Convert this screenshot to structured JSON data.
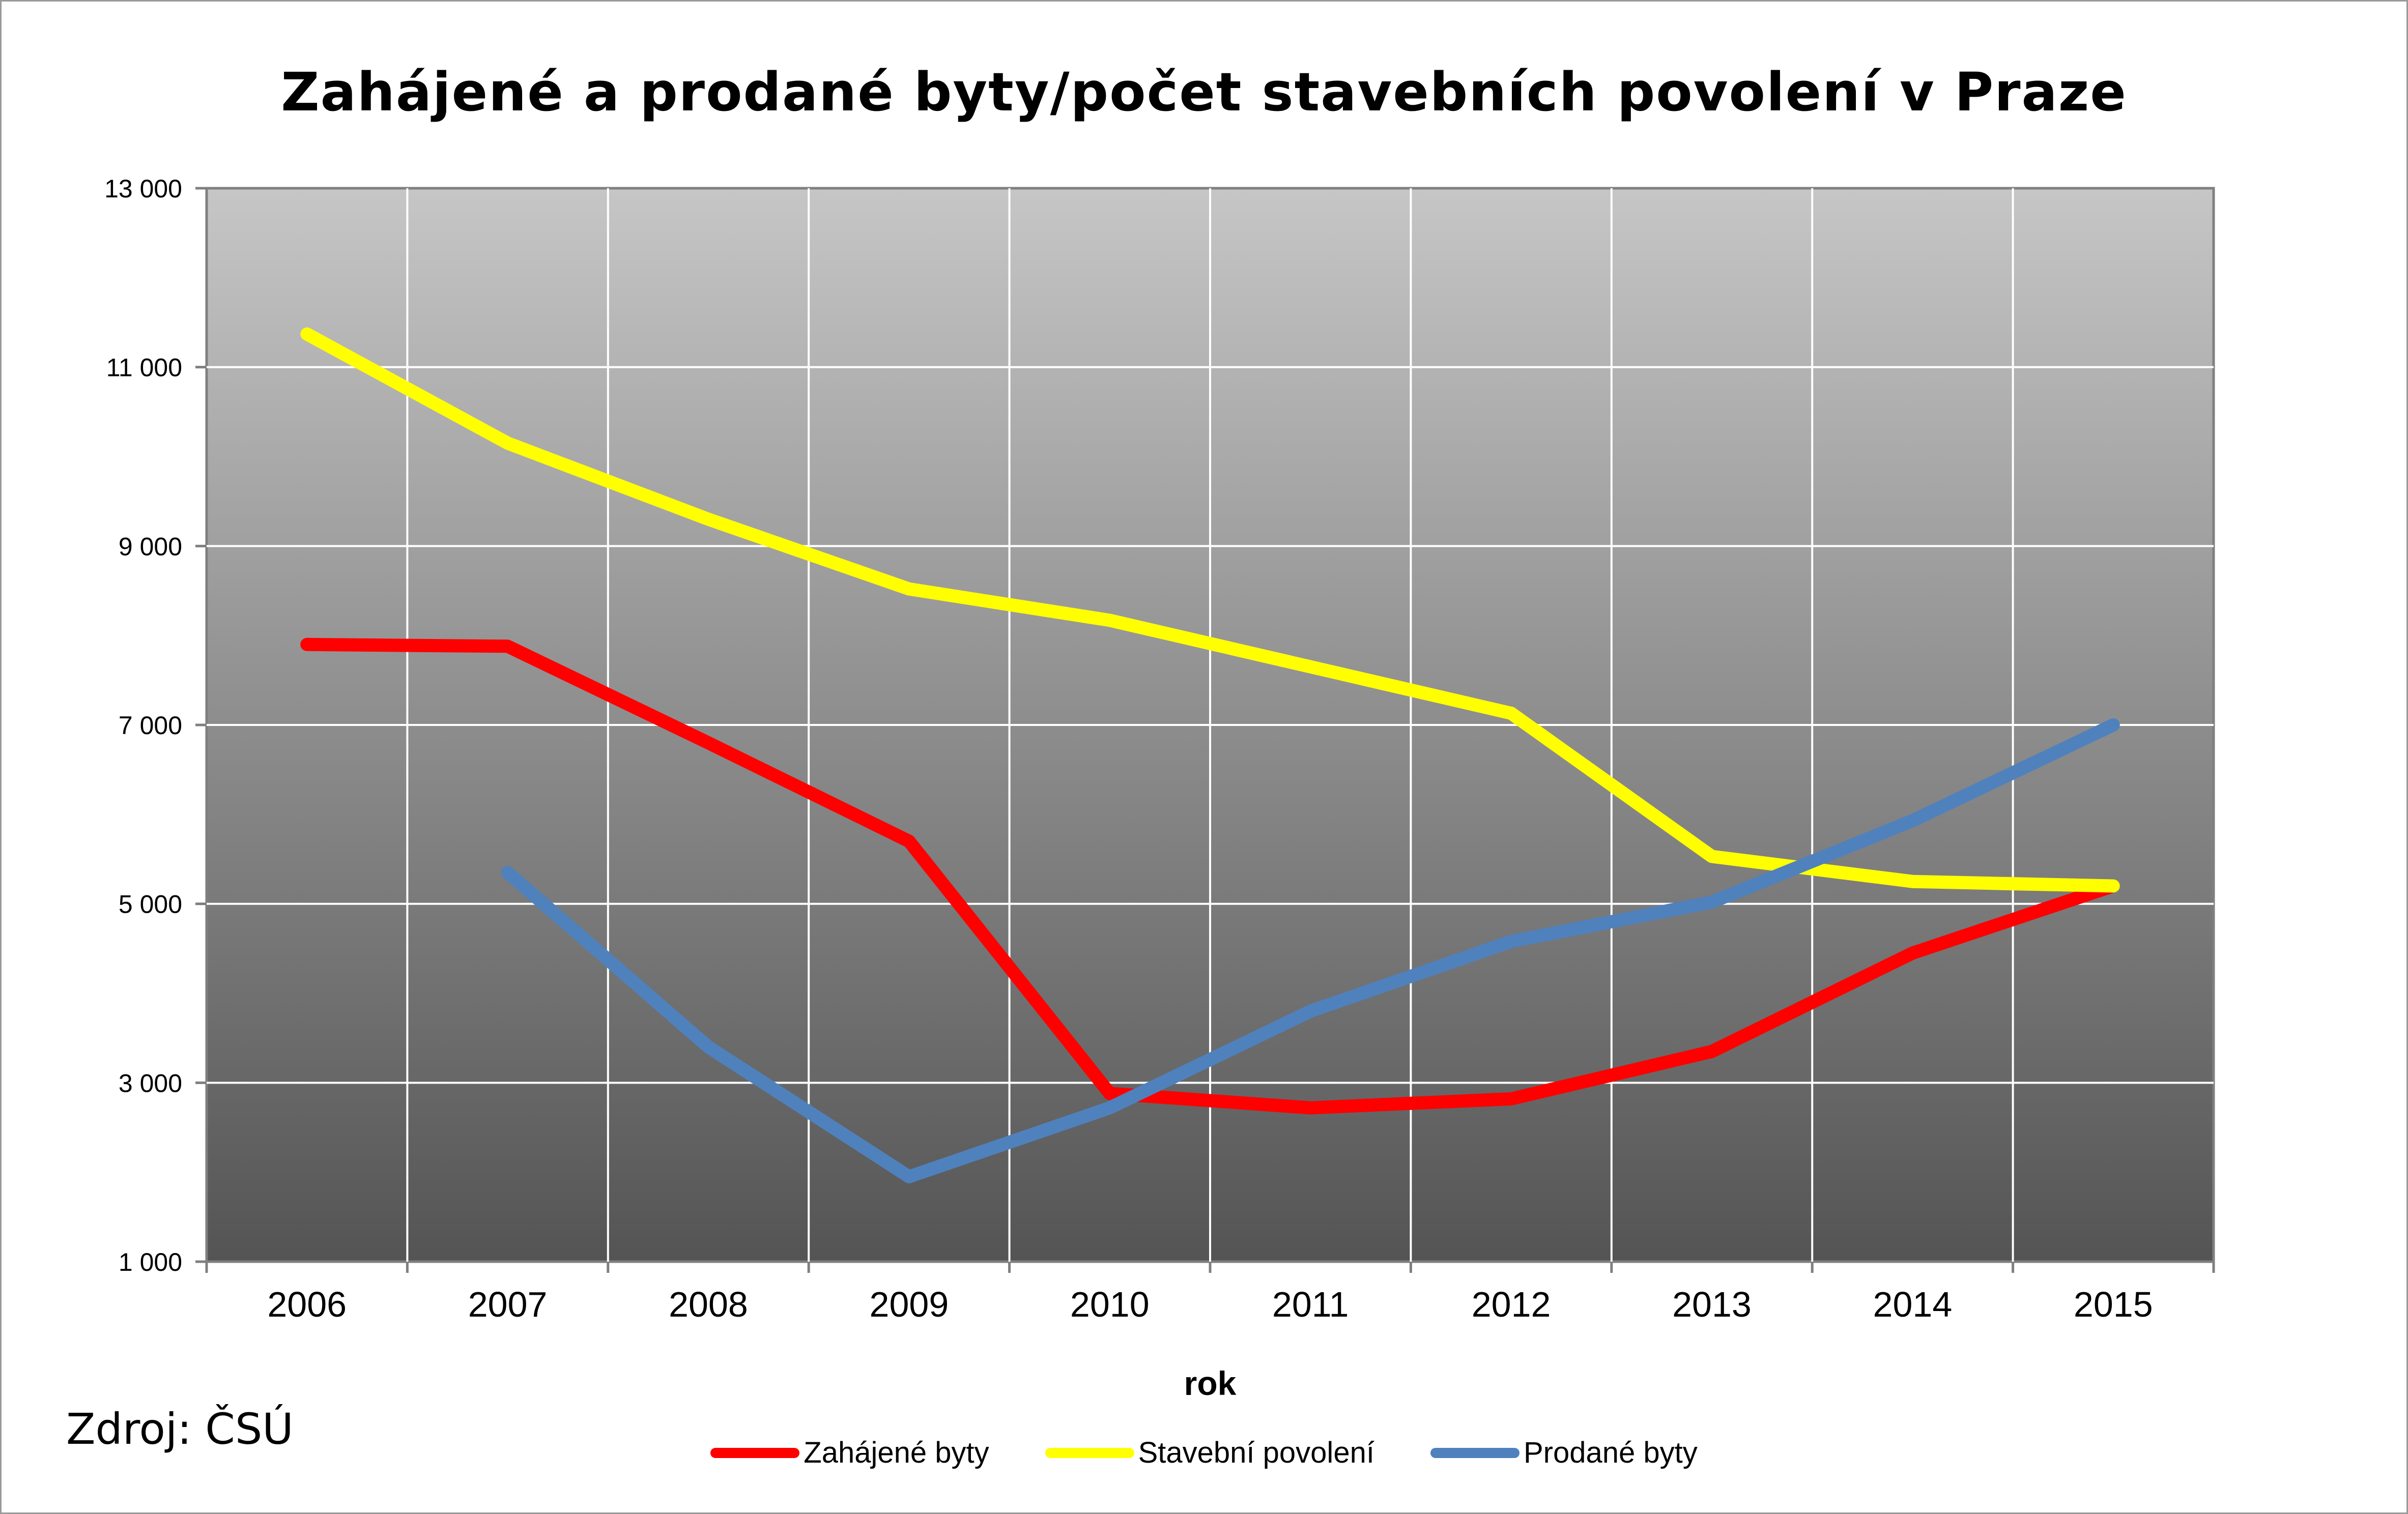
{
  "chart_data": {
    "type": "line",
    "title": "Zahájené a prodané byty/počet stavebních povolení v Praze",
    "xlabel": "rok",
    "ylabel": "",
    "categories": [
      "2006",
      "2007",
      "2008",
      "2009",
      "2010",
      "2011",
      "2012",
      "2013",
      "2014",
      "2015"
    ],
    "ylim": [
      1000,
      13000
    ],
    "yticks": [
      1000,
      3000,
      5000,
      7000,
      9000,
      11000,
      13000
    ],
    "ytick_labels": [
      "1 000",
      "3 000",
      "5 000",
      "7 000",
      "9 000",
      "11 000",
      "13 000"
    ],
    "grid": true,
    "legend_position": "bottom",
    "series": [
      {
        "name": "Zahájené byty",
        "color": "#ff0000",
        "values": [
          7900,
          7880,
          6800,
          5700,
          2880,
          2720,
          2820,
          3350,
          4450,
          5200
        ]
      },
      {
        "name": "Stavební povolení",
        "color": "#ffff00",
        "values": [
          11370,
          10150,
          9300,
          8520,
          8170,
          7650,
          7130,
          5530,
          5250,
          5200
        ]
      },
      {
        "name": "Prodané byty",
        "color": "#4f81bd",
        "values": [
          null,
          5350,
          3400,
          1950,
          2720,
          3800,
          4580,
          5020,
          5930,
          7000
        ]
      }
    ]
  },
  "source": "Zdroj: ČSÚ"
}
